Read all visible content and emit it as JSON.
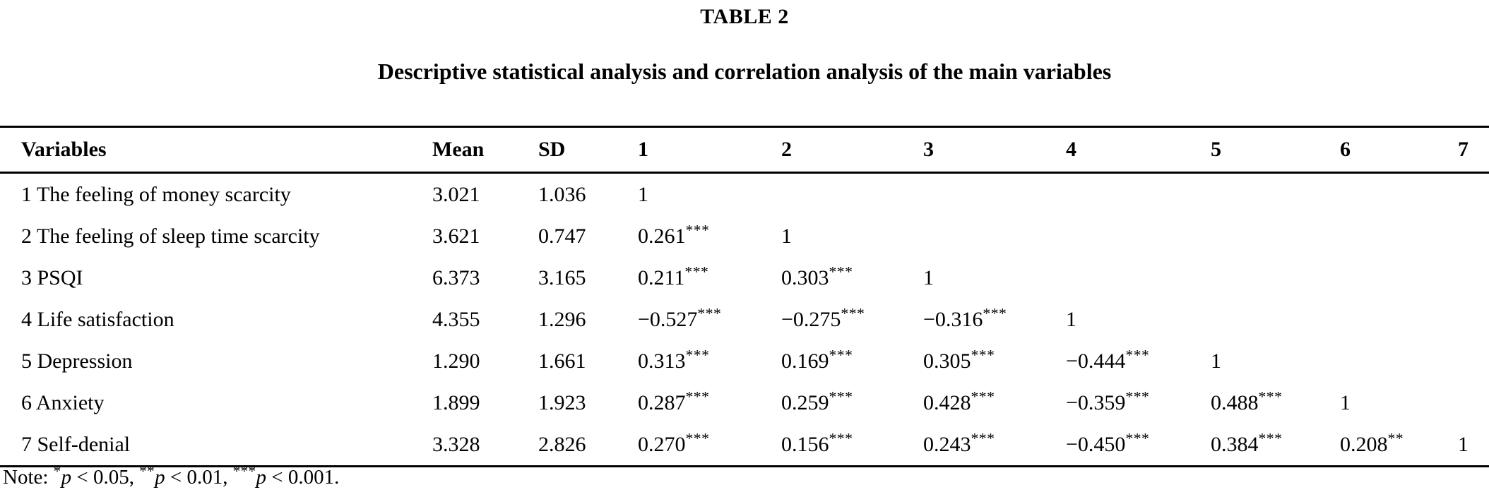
{
  "colors": {
    "text": "#000000",
    "background": "#ffffff",
    "rule": "#000000"
  },
  "header": {
    "label": "TABLE 2",
    "title": "Descriptive statistical analysis and correlation analysis of the main variables"
  },
  "table": {
    "columns": [
      "Variables",
      "Mean",
      "SD",
      "1",
      "2",
      "3",
      "4",
      "5",
      "6",
      "7"
    ],
    "rows": [
      {
        "variable": "1 The feeling of money scarcity",
        "mean": "3.021",
        "sd": "1.036",
        "corr": [
          "1",
          "",
          "",
          "",
          "",
          "",
          ""
        ]
      },
      {
        "variable": "2 The feeling of sleep time scarcity",
        "mean": "3.621",
        "sd": "0.747",
        "corr": [
          "0.261***",
          "1",
          "",
          "",
          "",
          "",
          ""
        ]
      },
      {
        "variable": "3 PSQI",
        "mean": "6.373",
        "sd": "3.165",
        "corr": [
          "0.211***",
          "0.303***",
          "1",
          "",
          "",
          "",
          ""
        ]
      },
      {
        "variable": "4 Life satisfaction",
        "mean": "4.355",
        "sd": "1.296",
        "corr": [
          "−0.527***",
          "−0.275***",
          "−0.316***",
          "1",
          "",
          "",
          ""
        ]
      },
      {
        "variable": "5 Depression",
        "mean": "1.290",
        "sd": "1.661",
        "corr": [
          "0.313***",
          "0.169***",
          "0.305***",
          "−0.444***",
          "1",
          "",
          ""
        ]
      },
      {
        "variable": "6 Anxiety",
        "mean": "1.899",
        "sd": "1.923",
        "corr": [
          "0.287***",
          "0.259***",
          "0.428***",
          "−0.359***",
          "0.488***",
          "1",
          ""
        ]
      },
      {
        "variable": "7 Self-denial",
        "mean": "3.328",
        "sd": "2.826",
        "corr": [
          "0.270***",
          "0.156***",
          "0.243***",
          "−0.450***",
          "0.384***",
          "0.208**",
          "1"
        ]
      }
    ]
  },
  "note": {
    "label": "Note: ",
    "thresholds": [
      {
        "stars": "*",
        "symbol": "p",
        "comparison": " < 0.05, "
      },
      {
        "stars": "**",
        "symbol": "p",
        "comparison": " < 0.01, "
      },
      {
        "stars": "***",
        "symbol": "p",
        "comparison": " < 0.001."
      }
    ]
  }
}
